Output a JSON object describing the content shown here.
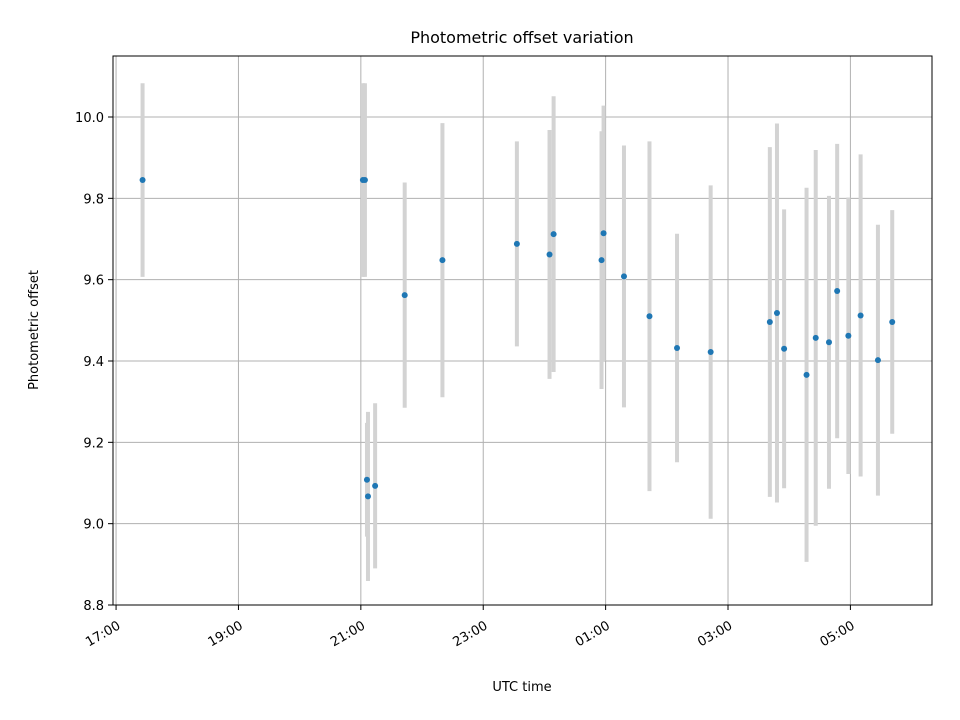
{
  "chart_data": {
    "type": "scatter",
    "title": "Photometric offset variation",
    "xlabel": "UTC time",
    "ylabel": "Photometric offset",
    "x_axis_type": "datetime",
    "xlim": [
      "2019-01-01 16:57",
      "2019-01-02 06:20"
    ],
    "ylim": [
      8.8,
      10.15
    ],
    "x_ticks": [
      {
        "label": "17:00",
        "t": "2019-01-01 17:00"
      },
      {
        "label": "19:00",
        "t": "2019-01-01 19:00"
      },
      {
        "label": "21:00",
        "t": "2019-01-01 21:00"
      },
      {
        "label": "23:00",
        "t": "2019-01-01 23:00"
      },
      {
        "label": "01:00",
        "t": "2019-01-02 01:00"
      },
      {
        "label": "03:00",
        "t": "2019-01-02 03:00"
      },
      {
        "label": "05:00",
        "t": "2019-01-02 05:00"
      }
    ],
    "y_ticks": [
      8.8,
      9.0,
      9.2,
      9.4,
      9.6,
      9.8,
      10.0
    ],
    "grid": true,
    "error_bar_color": "#d3d3d3",
    "point_color": "#1f77b4",
    "points": [
      {
        "t": "2019-01-01 17:26",
        "y": 9.845,
        "err": 0.238
      },
      {
        "t": "2019-01-01 21:02",
        "y": 9.845,
        "err": 0.238
      },
      {
        "t": "2019-01-01 21:04",
        "y": 9.845,
        "err": 0.238
      },
      {
        "t": "2019-01-01 21:06",
        "y": 9.108,
        "err": 0.14
      },
      {
        "t": "2019-01-01 21:07",
        "y": 9.067,
        "err": 0.208
      },
      {
        "t": "2019-01-01 21:14",
        "y": 9.093,
        "err": 0.203
      },
      {
        "t": "2019-01-01 21:43",
        "y": 9.562,
        "err": 0.277
      },
      {
        "t": "2019-01-01 22:20",
        "y": 9.648,
        "err": 0.337
      },
      {
        "t": "2019-01-01 23:33",
        "y": 9.688,
        "err": 0.252
      },
      {
        "t": "2019-01-02 00:05",
        "y": 9.662,
        "err": 0.306
      },
      {
        "t": "2019-01-02 00:09",
        "y": 9.712,
        "err": 0.339
      },
      {
        "t": "2019-01-02 00:56",
        "y": 9.648,
        "err": 0.317
      },
      {
        "t": "2019-01-02 00:58",
        "y": 9.714,
        "err": 0.314
      },
      {
        "t": "2019-01-02 01:18",
        "y": 9.608,
        "err": 0.322
      },
      {
        "t": "2019-01-02 01:43",
        "y": 9.51,
        "err": 0.43
      },
      {
        "t": "2019-01-02 02:10",
        "y": 9.432,
        "err": 0.281
      },
      {
        "t": "2019-01-02 02:43",
        "y": 9.422,
        "err": 0.41
      },
      {
        "t": "2019-01-02 03:41",
        "y": 9.496,
        "err": 0.43
      },
      {
        "t": "2019-01-02 03:48",
        "y": 9.518,
        "err": 0.466
      },
      {
        "t": "2019-01-02 03:55",
        "y": 9.43,
        "err": 0.343
      },
      {
        "t": "2019-01-02 04:17",
        "y": 9.366,
        "err": 0.46
      },
      {
        "t": "2019-01-02 04:26",
        "y": 9.457,
        "err": 0.462
      },
      {
        "t": "2019-01-02 04:39",
        "y": 9.446,
        "err": 0.36
      },
      {
        "t": "2019-01-02 04:47",
        "y": 9.572,
        "err": 0.362
      },
      {
        "t": "2019-01-02 04:58",
        "y": 9.462,
        "err": 0.34
      },
      {
        "t": "2019-01-02 05:10",
        "y": 9.512,
        "err": 0.396
      },
      {
        "t": "2019-01-02 05:27",
        "y": 9.402,
        "err": 0.333
      },
      {
        "t": "2019-01-02 05:41",
        "y": 9.496,
        "err": 0.275
      }
    ]
  }
}
